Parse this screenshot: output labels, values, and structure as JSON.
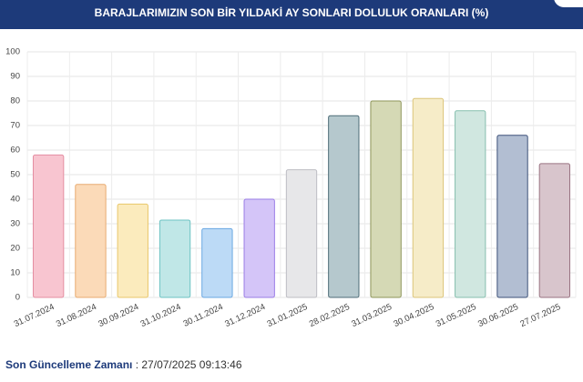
{
  "chart_data": {
    "type": "bar",
    "title": "BARAJLARIMIZIN SON BİR YILDAKİ AY SONLARI DOLULUK ORANLARI (%)",
    "categories": [
      "31.07.2024",
      "31.08.2024",
      "30.09.2024",
      "31.10.2024",
      "30.11.2024",
      "31.12.2024",
      "31.01.2025",
      "28.02.2025",
      "31.03.2025",
      "30.04.2025",
      "31.05.2025",
      "30.06.2025",
      "27.07.2025"
    ],
    "values": [
      58,
      46,
      38,
      31.5,
      28,
      40,
      52,
      74,
      80,
      81,
      76,
      66,
      54.5
    ],
    "colors": [
      "#f8c5d0",
      "#fbdab8",
      "#fbebbd",
      "#c0e7e7",
      "#bcdaf6",
      "#d4c5f8",
      "#e7e7e9",
      "#b5c8cd",
      "#d5d9b5",
      "#f6ecc8",
      "#d0e7e0",
      "#b2bed2",
      "#d8c5cc"
    ],
    "border_colors": [
      "#e48ea2",
      "#e8ab70",
      "#e9c76a",
      "#6cc3c3",
      "#6aa8e2",
      "#9a7de6",
      "#bdbdc3",
      "#4e6d78",
      "#8e965a",
      "#dcc57a",
      "#86bfae",
      "#3d5179",
      "#9a7382"
    ],
    "ylim": [
      0,
      100
    ],
    "yticks": [
      0,
      10,
      20,
      30,
      40,
      50,
      60,
      70,
      80,
      90,
      100
    ],
    "grid": true
  },
  "footer": {
    "label": "Son Güncelleme Zamanı",
    "value": ": 27/07/2025 09:13:46"
  }
}
